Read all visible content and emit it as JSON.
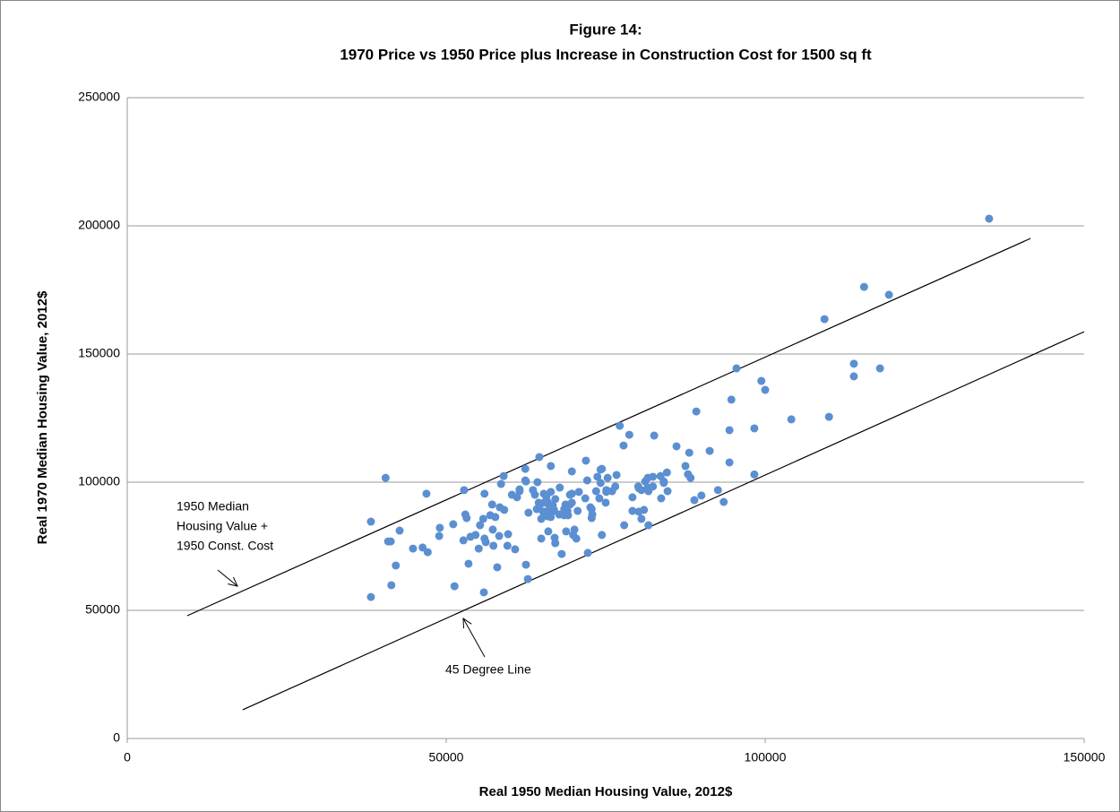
{
  "chart_data": {
    "type": "scatter",
    "title": [
      "Figure 14:",
      "1970 Price vs 1950 Price plus Increase in Construction Cost for 1500 sq ft"
    ],
    "xlabel": "Real 1950 Median Housing Value, 2012$",
    "ylabel": "Real 1970 Median Housing Value, 2012$",
    "xlim": [
      0,
      150000
    ],
    "ylim": [
      0,
      250000
    ],
    "xticks": [
      0,
      50000,
      100000,
      150000
    ],
    "yticks": [
      0,
      50000,
      100000,
      150000,
      200000,
      250000
    ],
    "grid": true,
    "color": "#5b8fd1",
    "x": [
      38200,
      38200,
      40500,
      40900,
      41300,
      41400,
      42100,
      42700,
      44800,
      46300,
      46900,
      47100,
      48900,
      49000,
      51100,
      51300,
      52700,
      52800,
      53000,
      53200,
      53500,
      53800,
      54600,
      55100,
      55300,
      55800,
      55900,
      56000,
      56000,
      56200,
      56900,
      57200,
      57300,
      57400,
      57700,
      58000,
      58300,
      58600,
      58400,
      59000,
      59100,
      59600,
      59700,
      60300,
      60800,
      61100,
      61500,
      61500,
      62400,
      62400,
      62500,
      62500,
      62800,
      62900,
      63600,
      63900,
      64200,
      64300,
      64500,
      64600,
      64600,
      64900,
      64900,
      65200,
      65300,
      65300,
      65600,
      65700,
      65900,
      65900,
      66000,
      66200,
      66400,
      66400,
      66400,
      66600,
      66700,
      66900,
      67000,
      67100,
      67100,
      67700,
      67800,
      68100,
      68500,
      68500,
      68700,
      68800,
      69000,
      69100,
      69400,
      69400,
      69700,
      69700,
      69700,
      69900,
      70100,
      70400,
      70600,
      70800,
      71900,
      71800,
      72100,
      72200,
      72800,
      72800,
      72600,
      72900,
      73500,
      73700,
      74000,
      74200,
      74200,
      74400,
      74400,
      75000,
      75100,
      75100,
      75300,
      76000,
      76500,
      76700,
      77200,
      77900,
      77800,
      78700,
      79200,
      79200,
      80200,
      80100,
      80200,
      80600,
      80600,
      81000,
      81200,
      81600,
      81600,
      81700,
      81700,
      82400,
      82400,
      82600,
      83600,
      83700,
      84100,
      84100,
      84600,
      84700,
      86100,
      87500,
      87900,
      88100,
      88300,
      88900,
      89200,
      90000,
      91300,
      92600,
      93500,
      94400,
      94400,
      94700,
      95500,
      98300,
      98300,
      99400,
      100000,
      104100,
      109300,
      110000,
      113900,
      113900,
      115500,
      118000,
      119400,
      135100
    ],
    "y": [
      84600,
      55200,
      101700,
      76900,
      76900,
      59800,
      67500,
      81100,
      74100,
      74500,
      95500,
      72700,
      79000,
      82200,
      83600,
      59400,
      77300,
      96900,
      87400,
      86000,
      68200,
      78700,
      79400,
      74100,
      83200,
      85700,
      57000,
      95500,
      78000,
      76600,
      87100,
      91300,
      81500,
      75200,
      86400,
      66800,
      79000,
      99300,
      90200,
      102400,
      89200,
      75200,
      79700,
      95100,
      73800,
      94100,
      97200,
      96500,
      105200,
      100700,
      100300,
      67800,
      62200,
      88100,
      96900,
      95100,
      89500,
      100000,
      92000,
      109800,
      90900,
      78000,
      85700,
      88500,
      92000,
      95500,
      88500,
      94400,
      86700,
      92300,
      80800,
      90600,
      96200,
      106300,
      86400,
      88500,
      90900,
      89200,
      78300,
      93400,
      76200,
      87400,
      97900,
      72000,
      87100,
      89500,
      91300,
      80800,
      88800,
      87100,
      91300,
      95100,
      104200,
      95500,
      92000,
      79400,
      81500,
      78000,
      88800,
      96200,
      108400,
      93700,
      100700,
      72400,
      86000,
      89500,
      90200,
      87400,
      96500,
      102100,
      93700,
      104900,
      99700,
      79400,
      105200,
      92000,
      96900,
      96200,
      101700,
      96500,
      98300,
      102800,
      122000,
      83200,
      114300,
      118500,
      94100,
      88800,
      88500,
      98300,
      97600,
      96900,
      85700,
      89200,
      100300,
      97900,
      101700,
      83200,
      96500,
      102100,
      98300,
      118200,
      102400,
      93700,
      99700,
      100300,
      103800,
      96500,
      114000,
      106300,
      103100,
      111500,
      101700,
      93000,
      127600,
      94800,
      112200,
      96900,
      92300,
      107700,
      120300,
      132200,
      144400,
      103000,
      121000,
      139500,
      136000,
      124500,
      163600,
      125500,
      146200,
      141300,
      176200,
      144400,
      173100,
      202800
    ],
    "reference_lines": [
      {
        "x": [
          9400,
          141600
        ],
        "y": [
          47900,
          195100
        ]
      },
      {
        "x": [
          18100,
          150000
        ],
        "y": [
          11200,
          158700
        ]
      }
    ],
    "annotations": [
      [
        "1950 Median",
        "Housing Value +",
        "1950 Const. Cost"
      ],
      [
        "45 Degree Line"
      ]
    ]
  }
}
